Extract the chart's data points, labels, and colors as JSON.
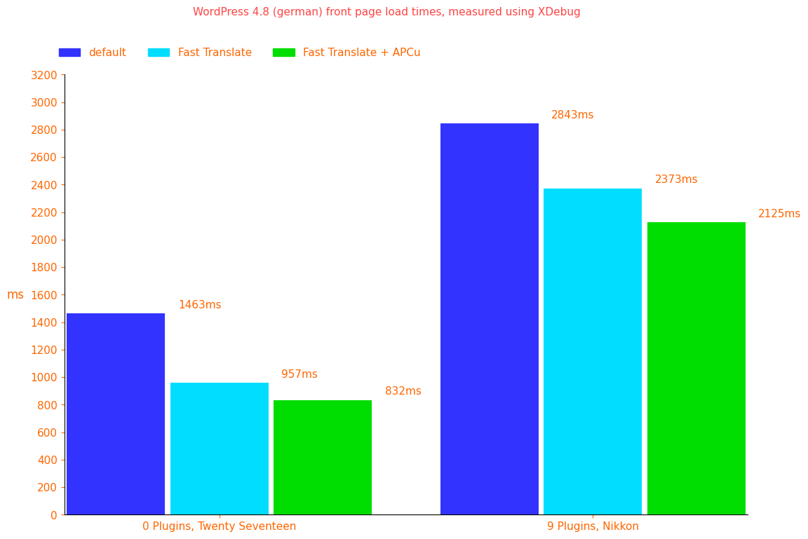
{
  "title": "WordPress 4.8 (german) front page load times, measured using XDebug",
  "title_color": "#ff4444",
  "ylabel": "ms",
  "ylabel_color": "#ff6600",
  "ylim": [
    0,
    3200
  ],
  "yticks": [
    0,
    200,
    400,
    600,
    800,
    1000,
    1200,
    1400,
    1600,
    1800,
    2000,
    2200,
    2400,
    2600,
    2800,
    3000,
    3200
  ],
  "categories": [
    "0 Plugins, Twenty Seventeen",
    "9 Plugins, Nikkon"
  ],
  "series": [
    {
      "label": "default",
      "color": "#3333ff",
      "values": [
        1463,
        2843
      ]
    },
    {
      "label": "Fast Translate",
      "color": "#00ddff",
      "values": [
        957,
        2373
      ]
    },
    {
      "label": "Fast Translate + APCu",
      "color": "#00dd00",
      "values": [
        832,
        2125
      ]
    }
  ],
  "bar_width": 0.18,
  "annotation_color": "#ff6600",
  "annotation_fontsize": 11,
  "tick_color": "#ff6600",
  "legend_fontsize": 11,
  "title_fontsize": 11,
  "background_color": "#ffffff",
  "plot_background": "#ffffff"
}
